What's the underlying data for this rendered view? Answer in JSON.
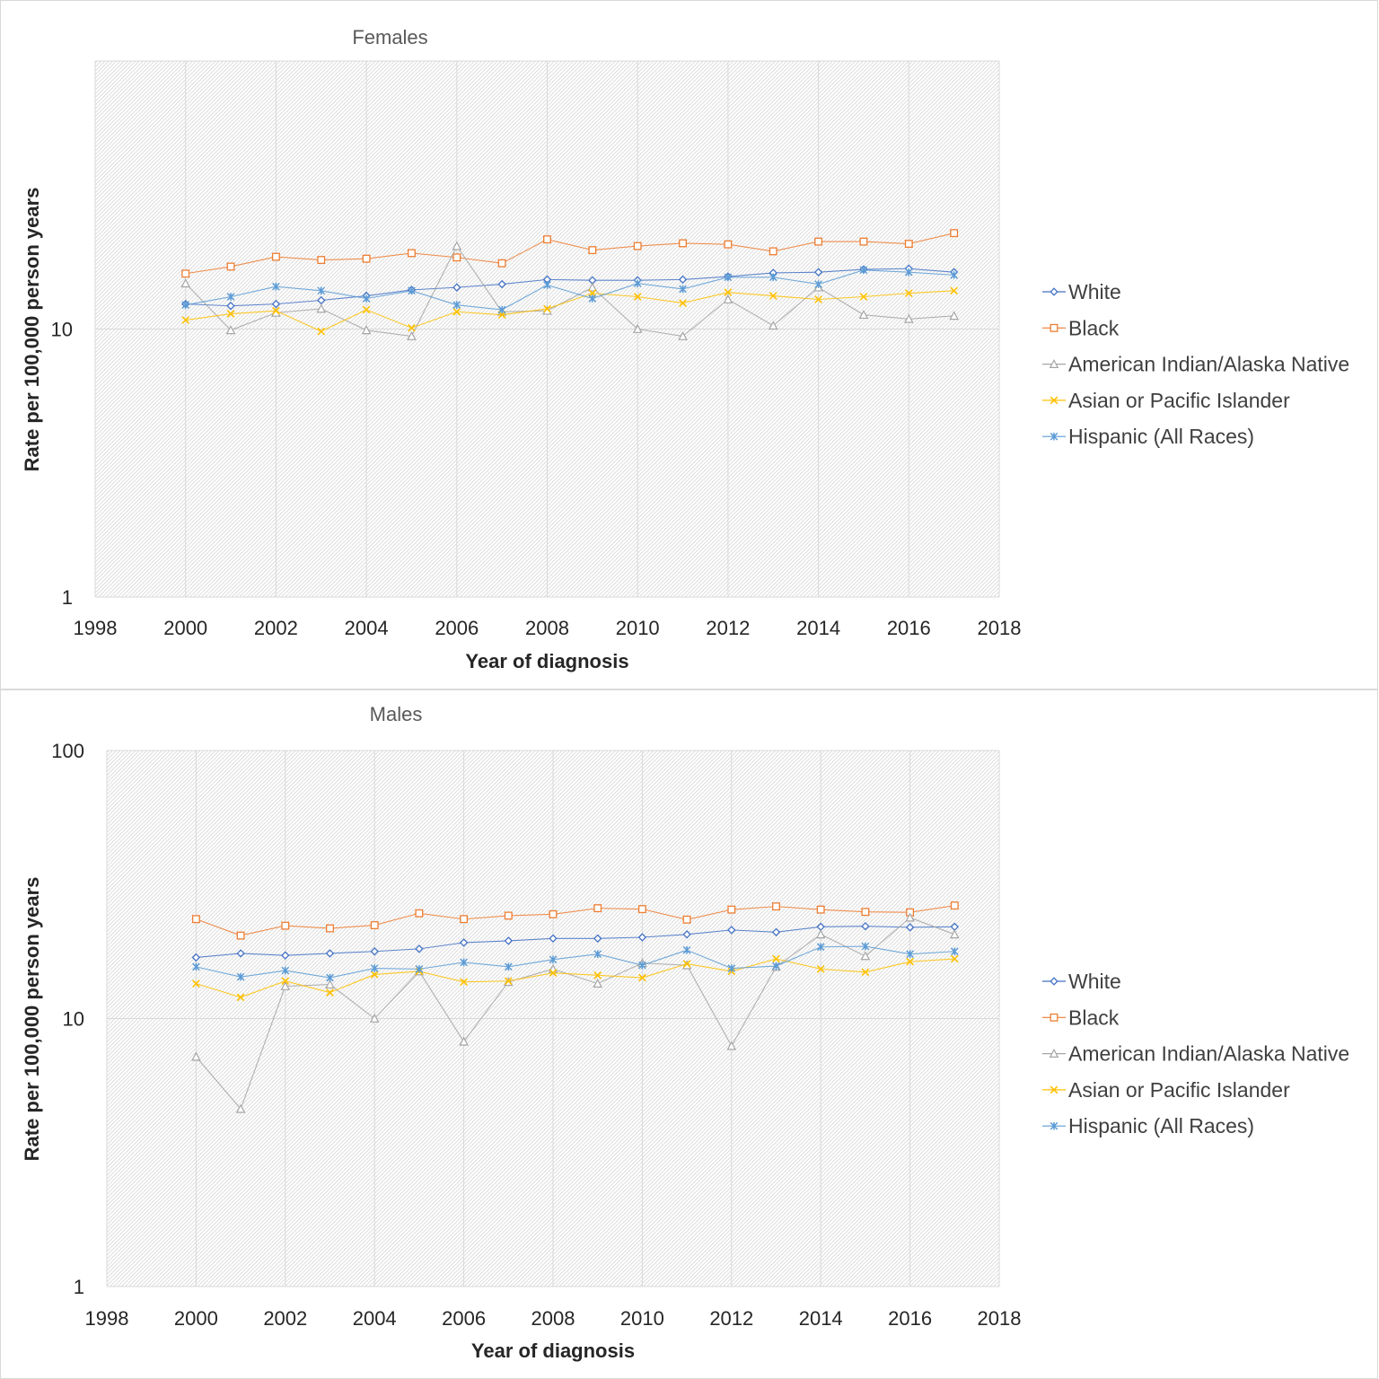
{
  "chart_data": [
    {
      "type": "line",
      "title": "Females",
      "xlabel": "Year of diagnosis",
      "ylabel": "Rate per 100,000 person years",
      "xlim": [
        1998,
        2018
      ],
      "ylim": [
        1,
        100
      ],
      "yscale": "log",
      "x_ticks": [
        1998,
        2000,
        2002,
        2004,
        2006,
        2008,
        2010,
        2012,
        2014,
        2016,
        2018
      ],
      "y_ticks": [
        1,
        10
      ],
      "grid": true,
      "legend_position": "right",
      "x": [
        2000,
        2001,
        2002,
        2003,
        2004,
        2005,
        2006,
        2007,
        2008,
        2009,
        2010,
        2011,
        2012,
        2013,
        2014,
        2015,
        2016,
        2017
      ],
      "series": [
        {
          "name": "White",
          "color": "#4472C4",
          "marker": "diamond",
          "values": [
            12.4,
            12.2,
            12.4,
            12.8,
            13.3,
            14.0,
            14.3,
            14.7,
            15.3,
            15.2,
            15.2,
            15.3,
            15.7,
            16.2,
            16.3,
            16.7,
            16.8,
            16.3
          ]
        },
        {
          "name": "Black",
          "color": "#ED7D31",
          "marker": "square",
          "values": [
            16.1,
            17.1,
            18.6,
            18.1,
            18.3,
            19.2,
            18.5,
            17.6,
            21.6,
            19.7,
            20.4,
            20.9,
            20.7,
            19.5,
            21.2,
            21.2,
            20.8,
            22.8
          ]
        },
        {
          "name": "American Indian/Alaska Native",
          "color": "#A5A5A5",
          "marker": "triangle",
          "values": [
            14.8,
            9.9,
            11.5,
            11.9,
            9.9,
            9.4,
            20.4,
            11.6,
            11.7,
            14.3,
            10.0,
            9.4,
            12.9,
            10.3,
            14.3,
            11.3,
            10.9,
            11.2
          ]
        },
        {
          "name": "Asian or Pacific Islander",
          "color": "#FFC000",
          "marker": "x",
          "values": [
            10.8,
            11.4,
            11.7,
            9.8,
            11.8,
            10.1,
            11.6,
            11.3,
            11.9,
            13.6,
            13.2,
            12.5,
            13.7,
            13.3,
            12.9,
            13.2,
            13.6,
            13.9
          ]
        },
        {
          "name": "Hispanic (All Races)",
          "color": "#5B9BD5",
          "marker": "star",
          "values": [
            12.3,
            13.2,
            14.4,
            13.9,
            13.0,
            13.9,
            12.3,
            11.8,
            14.6,
            13.0,
            14.8,
            14.1,
            15.6,
            15.6,
            14.7,
            16.6,
            16.3,
            15.9
          ]
        }
      ]
    },
    {
      "type": "line",
      "title": "Males",
      "xlabel": "Year of diagnosis",
      "ylabel": "Rate per 100,000 person years",
      "xlim": [
        1998,
        2018
      ],
      "ylim": [
        1,
        100
      ],
      "yscale": "log",
      "x_ticks": [
        1998,
        2000,
        2002,
        2004,
        2006,
        2008,
        2010,
        2012,
        2014,
        2016,
        2018
      ],
      "y_ticks": [
        1,
        10,
        100
      ],
      "grid": true,
      "legend_position": "right",
      "x": [
        2000,
        2001,
        2002,
        2003,
        2004,
        2005,
        2006,
        2007,
        2008,
        2009,
        2010,
        2011,
        2012,
        2013,
        2014,
        2015,
        2016,
        2017
      ],
      "series": [
        {
          "name": "White",
          "color": "#4472C4",
          "marker": "diamond",
          "values": [
            16.9,
            17.5,
            17.2,
            17.5,
            17.8,
            18.2,
            19.2,
            19.5,
            19.9,
            19.9,
            20.1,
            20.6,
            21.4,
            21.0,
            22.0,
            22.1,
            21.9,
            22.0
          ]
        },
        {
          "name": "Black",
          "color": "#ED7D31",
          "marker": "square",
          "values": [
            23.5,
            20.4,
            22.2,
            21.7,
            22.3,
            24.7,
            23.5,
            24.2,
            24.5,
            25.8,
            25.6,
            23.4,
            25.5,
            26.2,
            25.5,
            25.0,
            24.9,
            26.4
          ]
        },
        {
          "name": "American Indian/Alaska Native",
          "color": "#A5A5A5",
          "marker": "triangle",
          "values": [
            7.2,
            4.6,
            13.2,
            13.4,
            10.0,
            15.0,
            8.2,
            13.7,
            15.3,
            13.5,
            16.1,
            15.8,
            7.9,
            15.6,
            20.6,
            17.1,
            23.8,
            20.6
          ]
        },
        {
          "name": "Asian or Pacific Islander",
          "color": "#FFC000",
          "marker": "x",
          "values": [
            13.5,
            12.0,
            13.8,
            12.5,
            14.6,
            15.0,
            13.7,
            13.8,
            14.8,
            14.5,
            14.2,
            16.0,
            15.0,
            16.7,
            15.3,
            14.9,
            16.3,
            16.7
          ]
        },
        {
          "name": "Hispanic (All Races)",
          "color": "#5B9BD5",
          "marker": "star",
          "values": [
            15.6,
            14.3,
            15.1,
            14.2,
            15.4,
            15.3,
            16.2,
            15.6,
            16.6,
            17.4,
            15.8,
            18.0,
            15.4,
            15.7,
            18.5,
            18.6,
            17.4,
            17.8
          ]
        }
      ]
    }
  ]
}
